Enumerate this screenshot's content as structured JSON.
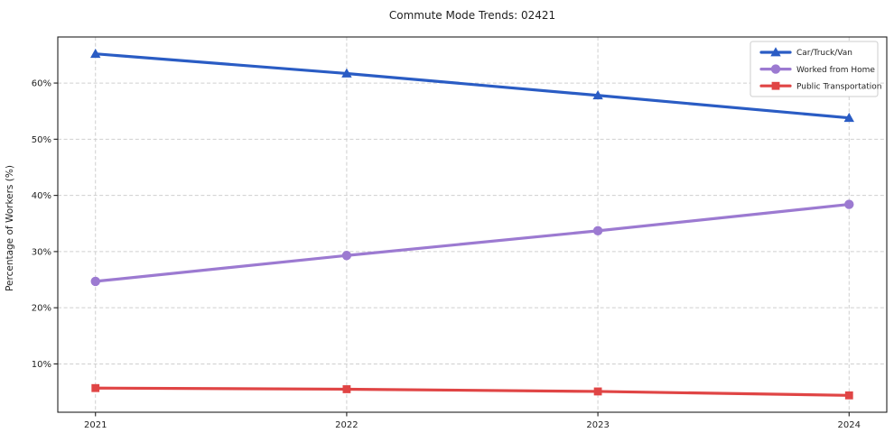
{
  "chart_data": {
    "type": "line",
    "title": "Commute Mode Trends: 02421",
    "xlabel": "",
    "ylabel": "Percentage of Workers (%)",
    "categories": [
      "2021",
      "2022",
      "2023",
      "2024"
    ],
    "x": [
      2021,
      2022,
      2023,
      2024
    ],
    "series": [
      {
        "name": "Car/Truck/Van",
        "marker": "triangle",
        "color": "#2a5cc4",
        "values": [
          65.2,
          61.7,
          57.8,
          53.8
        ]
      },
      {
        "name": "Worked from Home",
        "marker": "circle",
        "color": "#9c7ad1",
        "values": [
          24.7,
          29.3,
          33.7,
          38.4
        ]
      },
      {
        "name": "Public Transportation",
        "marker": "square",
        "color": "#e04545",
        "values": [
          5.7,
          5.5,
          5.1,
          4.4
        ]
      }
    ],
    "yticks": [
      10,
      20,
      30,
      40,
      50,
      60
    ],
    "ytick_labels": [
      "10%",
      "20%",
      "30%",
      "40%",
      "50%",
      "60%"
    ],
    "xlim": [
      2020.85,
      2024.15
    ],
    "ylim": [
      1.4,
      68.2
    ],
    "grid": true,
    "grid_style": "dashed",
    "legend_position": "upper-right",
    "colors": {
      "grid": "#cfcfcf",
      "spine": "#1f1f1f",
      "text": "#1f1f1f",
      "legend_border": "#cccccc",
      "background": "#ffffff"
    }
  }
}
